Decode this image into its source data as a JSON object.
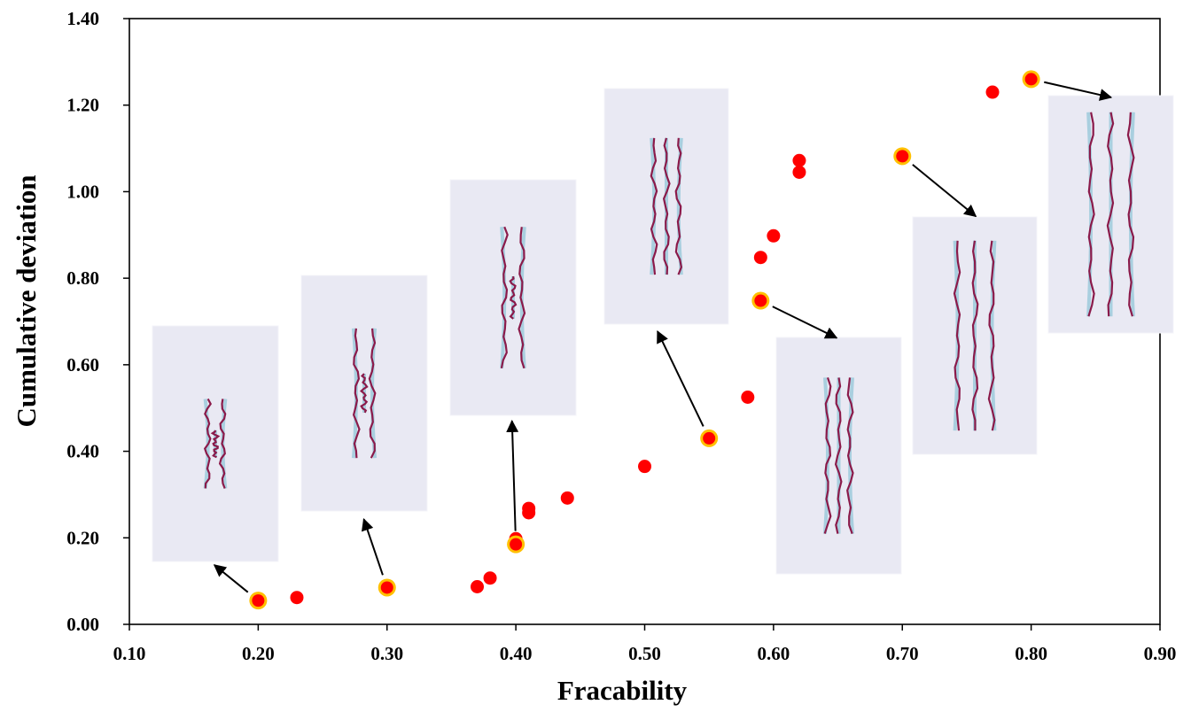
{
  "chart_data": {
    "type": "scatter",
    "xlabel": "Fracability",
    "ylabel": "Cumulative deviation",
    "xlim": [
      0.1,
      0.9
    ],
    "ylim": [
      0.0,
      1.4
    ],
    "x_ticks": [
      "0.10",
      "0.20",
      "0.30",
      "0.40",
      "0.50",
      "0.60",
      "0.70",
      "0.80",
      "0.90"
    ],
    "y_ticks": [
      "0.00",
      "0.20",
      "0.40",
      "0.60",
      "0.80",
      "1.00",
      "1.20",
      "1.40"
    ],
    "grid": false,
    "colors": {
      "point": "#ff0000",
      "highlight_ring": "#ffc000",
      "inset_background": "#e9e9f3",
      "fracture_line": "#8b1a4a"
    },
    "points": [
      {
        "x": 0.2,
        "y": 0.055,
        "highlighted": true
      },
      {
        "x": 0.23,
        "y": 0.062,
        "highlighted": false
      },
      {
        "x": 0.3,
        "y": 0.085,
        "highlighted": true
      },
      {
        "x": 0.37,
        "y": 0.087,
        "highlighted": false
      },
      {
        "x": 0.38,
        "y": 0.107,
        "highlighted": false
      },
      {
        "x": 0.4,
        "y": 0.198,
        "highlighted": false
      },
      {
        "x": 0.4,
        "y": 0.185,
        "highlighted": true
      },
      {
        "x": 0.41,
        "y": 0.258,
        "highlighted": false
      },
      {
        "x": 0.41,
        "y": 0.268,
        "highlighted": false
      },
      {
        "x": 0.44,
        "y": 0.292,
        "highlighted": false
      },
      {
        "x": 0.5,
        "y": 0.365,
        "highlighted": false
      },
      {
        "x": 0.55,
        "y": 0.43,
        "highlighted": true
      },
      {
        "x": 0.58,
        "y": 0.525,
        "highlighted": false
      },
      {
        "x": 0.59,
        "y": 0.748,
        "highlighted": true
      },
      {
        "x": 0.59,
        "y": 0.848,
        "highlighted": false
      },
      {
        "x": 0.6,
        "y": 0.898,
        "highlighted": false
      },
      {
        "x": 0.62,
        "y": 1.045,
        "highlighted": false
      },
      {
        "x": 0.62,
        "y": 1.072,
        "highlighted": false
      },
      {
        "x": 0.7,
        "y": 1.082,
        "highlighted": true
      },
      {
        "x": 0.77,
        "y": 1.23,
        "highlighted": false
      },
      {
        "x": 0.8,
        "y": 1.26,
        "highlighted": true
      }
    ],
    "insets": [
      {
        "anchor": {
          "x": 0.2,
          "y": 0.055
        },
        "arrow_to": {
          "x": 0.166,
          "y": 0.137
        },
        "fractures": 3,
        "spread": 0.16,
        "length": 0.38,
        "middle_short": true
      },
      {
        "anchor": {
          "x": 0.3,
          "y": 0.085
        },
        "arrow_to": {
          "x": 0.282,
          "y": 0.243
        },
        "fractures": 3,
        "spread": 0.17,
        "length": 0.55,
        "middle_short": true
      },
      {
        "anchor": {
          "x": 0.4,
          "y": 0.185
        },
        "arrow_to": {
          "x": 0.397,
          "y": 0.47
        },
        "fractures": 3,
        "spread": 0.18,
        "length": 0.6,
        "middle_short": true
      },
      {
        "anchor": {
          "x": 0.55,
          "y": 0.43
        },
        "arrow_to": {
          "x": 0.51,
          "y": 0.677
        },
        "fractures": 3,
        "spread": 0.24,
        "length": 0.58,
        "middle_short": false
      },
      {
        "anchor": {
          "x": 0.59,
          "y": 0.748
        },
        "arrow_to": {
          "x": 0.649,
          "y": 0.662
        },
        "fractures": 3,
        "spread": 0.22,
        "length": 0.66,
        "middle_short": false
      },
      {
        "anchor": {
          "x": 0.7,
          "y": 1.082
        },
        "arrow_to": {
          "x": 0.757,
          "y": 0.943
        },
        "fractures": 3,
        "spread": 0.32,
        "length": 0.8,
        "middle_short": false
      },
      {
        "anchor": {
          "x": 0.8,
          "y": 1.26
        },
        "arrow_to": {
          "x": 0.862,
          "y": 1.218
        },
        "fractures": 3,
        "spread": 0.36,
        "length": 0.86,
        "middle_short": false
      }
    ]
  }
}
